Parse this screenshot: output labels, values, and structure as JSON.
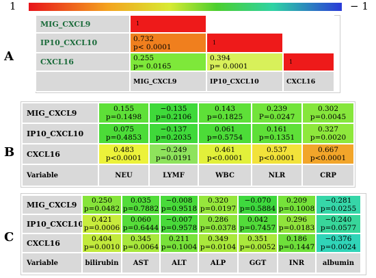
{
  "legend": {
    "left_label": "1",
    "right_label": "− 1",
    "colors": [
      "#e8141a",
      "#f4a21e",
      "#d8ea32",
      "#4ccf2e",
      "#2ed3a4",
      "#2a3ad8"
    ]
  },
  "chart_data": [
    {
      "type": "heatmap",
      "panel": "A",
      "rows": [
        "MIG_CXCL9",
        "IP10_CXCL10",
        "CXCL16"
      ],
      "columns": [
        "MIG_CXCL9",
        "IP10_CXCL10",
        "CXCL16"
      ],
      "cells": [
        {
          "row": 0,
          "col": 0,
          "r_text": "1",
          "p_text": "",
          "value": 1,
          "color": "#ee1a1a"
        },
        {
          "row": 1,
          "col": 0,
          "r_text": "0.732",
          "p_text": "p< 0.0001",
          "value": 0.732,
          "color": "#f07f1e"
        },
        {
          "row": 1,
          "col": 1,
          "r_text": "1",
          "p_text": "",
          "value": 1,
          "color": "#ee1a1a"
        },
        {
          "row": 2,
          "col": 0,
          "r_text": "0.255",
          "p_text": "p= 0.0165",
          "value": 0.255,
          "color": "#7ee83a"
        },
        {
          "row": 2,
          "col": 1,
          "r_text": "0.394",
          "p_text": "p= 0.0001",
          "value": 0.394,
          "color": "#d8f05a"
        },
        {
          "row": 2,
          "col": 2,
          "r_text": "1",
          "p_text": "",
          "value": 1,
          "color": "#ee1a1a"
        }
      ]
    },
    {
      "type": "heatmap",
      "panel": "B",
      "header_label": "Variable",
      "rows": [
        "MIG_CXCL9",
        "IP10_CXCL10",
        "CXCL16"
      ],
      "columns": [
        "NEU",
        "LYMF",
        "WBC",
        "NLR",
        "CRP"
      ],
      "cells": [
        {
          "row": 0,
          "col": 0,
          "r_text": "0.155",
          "p_text": "p=0.1498",
          "value": 0.155,
          "color": "#5ee038"
        },
        {
          "row": 0,
          "col": 1,
          "r_text": "−0.135",
          "p_text": "p=0.2106",
          "value": -0.135,
          "color": "#3fd93a"
        },
        {
          "row": 0,
          "col": 2,
          "r_text": "0.143",
          "p_text": "p=0.1825",
          "value": 0.143,
          "color": "#5ee038"
        },
        {
          "row": 0,
          "col": 3,
          "r_text": "0.239",
          "p_text": "P=0.0247",
          "value": 0.239,
          "color": "#72e43a"
        },
        {
          "row": 0,
          "col": 4,
          "r_text": "0.302",
          "p_text": "p=0.0045",
          "value": 0.302,
          "color": "#86e63c"
        },
        {
          "row": 1,
          "col": 0,
          "r_text": "0.075",
          "p_text": "p=0.4853",
          "value": 0.075,
          "color": "#4cdc38"
        },
        {
          "row": 1,
          "col": 1,
          "r_text": "−0.137",
          "p_text": "p=0.2035",
          "value": -0.137,
          "color": "#3fd93a"
        },
        {
          "row": 1,
          "col": 2,
          "r_text": "0.061",
          "p_text": "p=0.5754",
          "value": 0.061,
          "color": "#4cdc38"
        },
        {
          "row": 1,
          "col": 3,
          "r_text": "0.161",
          "p_text": "p=0.1351",
          "value": 0.161,
          "color": "#5ee038"
        },
        {
          "row": 1,
          "col": 4,
          "r_text": "0.327",
          "p_text": "p=0.0020",
          "value": 0.327,
          "color": "#8ee83c"
        },
        {
          "row": 2,
          "col": 0,
          "r_text": "0.483",
          "p_text": "p<0.0001",
          "value": 0.483,
          "color": "#ecf23a"
        },
        {
          "row": 2,
          "col": 1,
          "r_text": "−0.249",
          "p_text": "p=0.0191",
          "value": -0.249,
          "color": "#8ee35c"
        },
        {
          "row": 2,
          "col": 2,
          "r_text": "0.461",
          "p_text": "p<0.0001",
          "value": 0.461,
          "color": "#e2f03a"
        },
        {
          "row": 2,
          "col": 3,
          "r_text": "0.537",
          "p_text": "p<0.0001",
          "value": 0.537,
          "color": "#f2e23a"
        },
        {
          "row": 2,
          "col": 4,
          "r_text": "0.667",
          "p_text": "p<0.0001",
          "value": 0.667,
          "color": "#f2a52a"
        }
      ]
    },
    {
      "type": "heatmap",
      "panel": "C",
      "header_label": "Variable",
      "rows": [
        "MIG_CXCL9",
        "IP10_CXCL10",
        "CXCL16"
      ],
      "columns": [
        "bilirubin",
        "AST",
        "ALT",
        "ALP",
        "GGT",
        "INR",
        "albumin"
      ],
      "cells": [
        {
          "row": 0,
          "col": 0,
          "r_text": "0.250",
          "p_text": "p=0.0482",
          "value": 0.25,
          "color": "#86e43a"
        },
        {
          "row": 0,
          "col": 1,
          "r_text": "0.035",
          "p_text": "p=0.7882",
          "value": 0.035,
          "color": "#52dc3a"
        },
        {
          "row": 0,
          "col": 2,
          "r_text": "−0.008",
          "p_text": "p=0.9518",
          "value": -0.008,
          "color": "#48da3a"
        },
        {
          "row": 0,
          "col": 3,
          "r_text": "0.320",
          "p_text": "p=0.0197",
          "value": 0.32,
          "color": "#96e63c"
        },
        {
          "row": 0,
          "col": 4,
          "r_text": "−0.070",
          "p_text": "p=0.5884",
          "value": -0.07,
          "color": "#3ed83e"
        },
        {
          "row": 0,
          "col": 5,
          "r_text": "0.209",
          "p_text": "p=0.1008",
          "value": 0.209,
          "color": "#76e23a"
        },
        {
          "row": 0,
          "col": 6,
          "r_text": "−0.281",
          "p_text": "p=0.0255",
          "value": -0.281,
          "color": "#36d6a8"
        },
        {
          "row": 1,
          "col": 0,
          "r_text": "0.421",
          "p_text": "p=0.0006",
          "value": 0.421,
          "color": "#c8ec3c"
        },
        {
          "row": 1,
          "col": 1,
          "r_text": "0.060",
          "p_text": "p=0.6444",
          "value": 0.06,
          "color": "#56dc3a"
        },
        {
          "row": 1,
          "col": 2,
          "r_text": "−0.007",
          "p_text": "p=0.9578",
          "value": -0.007,
          "color": "#48da3a"
        },
        {
          "row": 1,
          "col": 3,
          "r_text": "0.286",
          "p_text": "p=0.0378",
          "value": 0.286,
          "color": "#8ee43c"
        },
        {
          "row": 1,
          "col": 4,
          "r_text": "0.042",
          "p_text": "p=0.7457",
          "value": 0.042,
          "color": "#52dc3a"
        },
        {
          "row": 1,
          "col": 5,
          "r_text": "0.296",
          "p_text": "p=0.0183",
          "value": 0.296,
          "color": "#90e43c"
        },
        {
          "row": 1,
          "col": 6,
          "r_text": "−0.240",
          "p_text": "p=0.0577",
          "value": -0.24,
          "color": "#38d69a"
        },
        {
          "row": 2,
          "col": 0,
          "r_text": "0.404",
          "p_text": "p=0.0010",
          "value": 0.404,
          "color": "#c2ea3c"
        },
        {
          "row": 2,
          "col": 1,
          "r_text": "0.345",
          "p_text": "p=0.0064",
          "value": 0.345,
          "color": "#a8e83c"
        },
        {
          "row": 2,
          "col": 2,
          "r_text": "0.211",
          "p_text": "p=0.1004",
          "value": 0.211,
          "color": "#78e23a"
        },
        {
          "row": 2,
          "col": 3,
          "r_text": "0.349",
          "p_text": "p=0.0104",
          "value": 0.349,
          "color": "#aae83c"
        },
        {
          "row": 2,
          "col": 4,
          "r_text": "0.351",
          "p_text": "p=0.0052",
          "value": 0.351,
          "color": "#aae83c"
        },
        {
          "row": 2,
          "col": 5,
          "r_text": "0.186",
          "p_text": "p=0.1447",
          "value": 0.186,
          "color": "#6ee03a"
        },
        {
          "row": 2,
          "col": 6,
          "r_text": "−0.376",
          "p_text": "p=0.0024",
          "value": -0.376,
          "color": "#30d4b8"
        }
      ]
    }
  ]
}
